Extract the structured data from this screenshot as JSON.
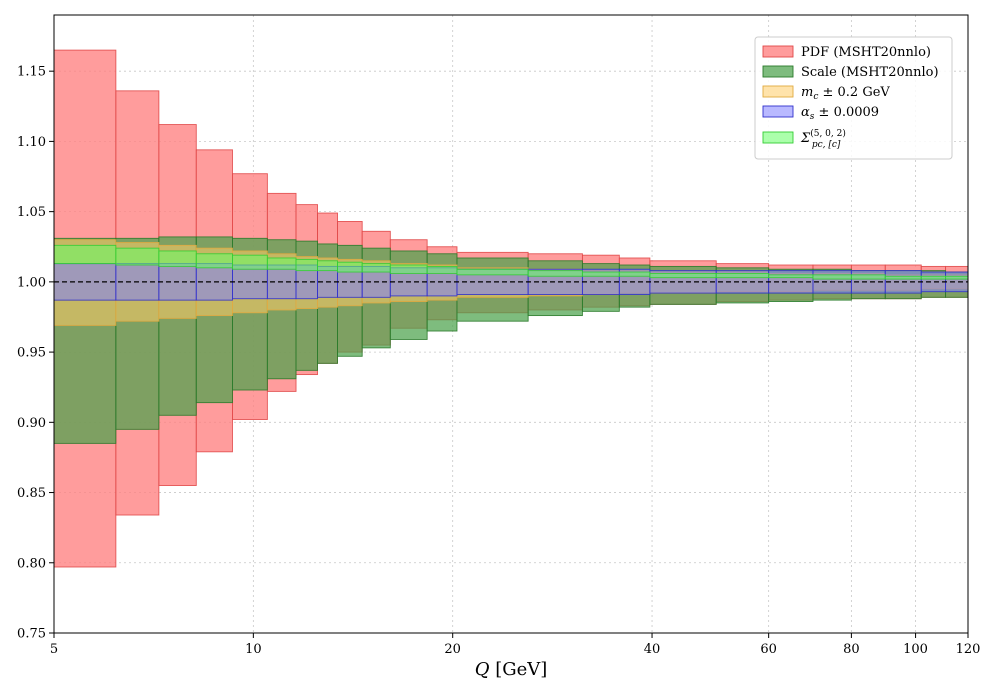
{
  "chart_data": {
    "type": "area",
    "xscale": "log",
    "xlim": [
      5,
      120
    ],
    "ylim": [
      0.75,
      1.19
    ],
    "xlabel_var": "Q",
    "xlabel_unit": " [GeV]",
    "xticks": [
      5,
      10,
      20,
      40,
      60,
      80,
      100,
      120
    ],
    "xtick_labels": [
      "5",
      "10",
      "20",
      "40",
      "60",
      "80",
      "100",
      "120"
    ],
    "yticks": [
      0.75,
      0.8,
      0.85,
      0.9,
      0.95,
      1.0,
      1.05,
      1.1,
      1.15
    ],
    "ytick_labels": [
      "0.75",
      "0.80",
      "0.85",
      "0.90",
      "0.95",
      "1.00",
      "1.05",
      "1.10",
      "1.15"
    ],
    "grid": true,
    "reference_line": 1.0,
    "legend_position": "top-right",
    "bin_edges": [
      5,
      6.2,
      7.2,
      8.2,
      9.3,
      10.5,
      11.6,
      12.5,
      13.4,
      14.6,
      16.1,
      18.3,
      20.3,
      26.0,
      31.4,
      35.7,
      39.7,
      50.0,
      60.0,
      70.0,
      80.0,
      90.0,
      102.0,
      111.0,
      120.0
    ],
    "series": [
      {
        "name": "PDF (MSHT20nnlo)",
        "key": "pdf",
        "color": "#ff8080",
        "edge": "#e04848",
        "opacity": 0.78,
        "upper": [
          1.165,
          1.136,
          1.112,
          1.094,
          1.077,
          1.063,
          1.055,
          1.049,
          1.043,
          1.036,
          1.03,
          1.025,
          1.021,
          1.02,
          1.019,
          1.017,
          1.015,
          1.013,
          1.012,
          1.012,
          1.012,
          1.012,
          1.011,
          1.011
        ],
        "lower": [
          0.797,
          0.834,
          0.855,
          0.879,
          0.902,
          0.922,
          0.934,
          0.942,
          0.95,
          0.955,
          0.967,
          0.973,
          0.978,
          0.98,
          0.982,
          0.983,
          0.984,
          0.986,
          0.987,
          0.988,
          0.988,
          0.988,
          0.989,
          0.989
        ]
      },
      {
        "name": "Scale (MSHT20nnlo)",
        "key": "scale",
        "color": "#4ca24c",
        "edge": "#2a7a2a",
        "opacity": 0.72,
        "upper": [
          1.031,
          1.031,
          1.032,
          1.032,
          1.031,
          1.03,
          1.029,
          1.027,
          1.026,
          1.024,
          1.022,
          1.02,
          1.017,
          1.015,
          1.013,
          1.012,
          1.011,
          1.01,
          1.009,
          1.009,
          1.008,
          1.008,
          1.008,
          1.007
        ],
        "lower": [
          0.885,
          0.895,
          0.905,
          0.914,
          0.923,
          0.931,
          0.937,
          0.942,
          0.947,
          0.953,
          0.959,
          0.965,
          0.972,
          0.976,
          0.979,
          0.982,
          0.984,
          0.985,
          0.986,
          0.987,
          0.988,
          0.988,
          0.989,
          0.989
        ]
      },
      {
        "name_math": "m",
        "name_sub": "c",
        "name_rest": " ± 0.2 GeV",
        "key": "mc",
        "color": "#ffcc66",
        "edge": "#e0aa40",
        "opacity": 0.55,
        "upper": [
          1.03,
          1.028,
          1.026,
          1.024,
          1.022,
          1.02,
          1.018,
          1.017,
          1.016,
          1.015,
          1.013,
          1.012,
          1.01,
          1.009,
          1.008,
          1.008,
          1.007,
          1.007,
          1.006,
          1.006,
          1.006,
          1.005,
          1.005,
          1.005
        ],
        "lower": [
          0.969,
          0.972,
          0.974,
          0.976,
          0.978,
          0.98,
          0.981,
          0.982,
          0.983,
          0.985,
          0.986,
          0.987,
          0.989,
          0.99,
          0.991,
          0.992,
          0.992,
          0.993,
          0.993,
          0.994,
          0.994,
          0.994,
          0.995,
          0.995
        ]
      },
      {
        "name_math": "α",
        "name_sub": "s",
        "name_rest": " ± 0.0009",
        "key": "alphas",
        "color": "#8080ff",
        "edge": "#3030cc",
        "opacity": 0.55,
        "upper": [
          1.013,
          1.013,
          1.013,
          1.013,
          1.012,
          1.012,
          1.012,
          1.011,
          1.011,
          1.011,
          1.01,
          1.01,
          1.009,
          1.009,
          1.009,
          1.009,
          1.008,
          1.008,
          1.008,
          1.008,
          1.008,
          1.008,
          1.007,
          1.007
        ],
        "lower": [
          0.987,
          0.987,
          0.987,
          0.987,
          0.988,
          0.988,
          0.988,
          0.989,
          0.989,
          0.989,
          0.99,
          0.99,
          0.991,
          0.991,
          0.991,
          0.991,
          0.992,
          0.992,
          0.992,
          0.992,
          0.992,
          0.992,
          0.993,
          0.993
        ]
      },
      {
        "name_math": "Σ",
        "name_sub": "pc, [c]",
        "name_sup": "(5, 0, 2)",
        "key": "sigma",
        "color": "#66ff66",
        "edge": "#33cc33",
        "opacity": 0.55,
        "upper": [
          1.026,
          1.024,
          1.022,
          1.02,
          1.019,
          1.017,
          1.016,
          1.015,
          1.014,
          1.013,
          1.012,
          1.011,
          1.009,
          1.008,
          1.007,
          1.007,
          1.006,
          1.006,
          1.005,
          1.005,
          1.005,
          1.004,
          1.004,
          1.004
        ],
        "lower": [
          1.013,
          1.012,
          1.011,
          1.01,
          1.009,
          1.009,
          1.008,
          1.008,
          1.007,
          1.007,
          1.006,
          1.006,
          1.005,
          1.004,
          1.004,
          1.004,
          1.003,
          1.003,
          1.003,
          1.002,
          1.002,
          1.002,
          1.002,
          1.002
        ]
      }
    ]
  }
}
